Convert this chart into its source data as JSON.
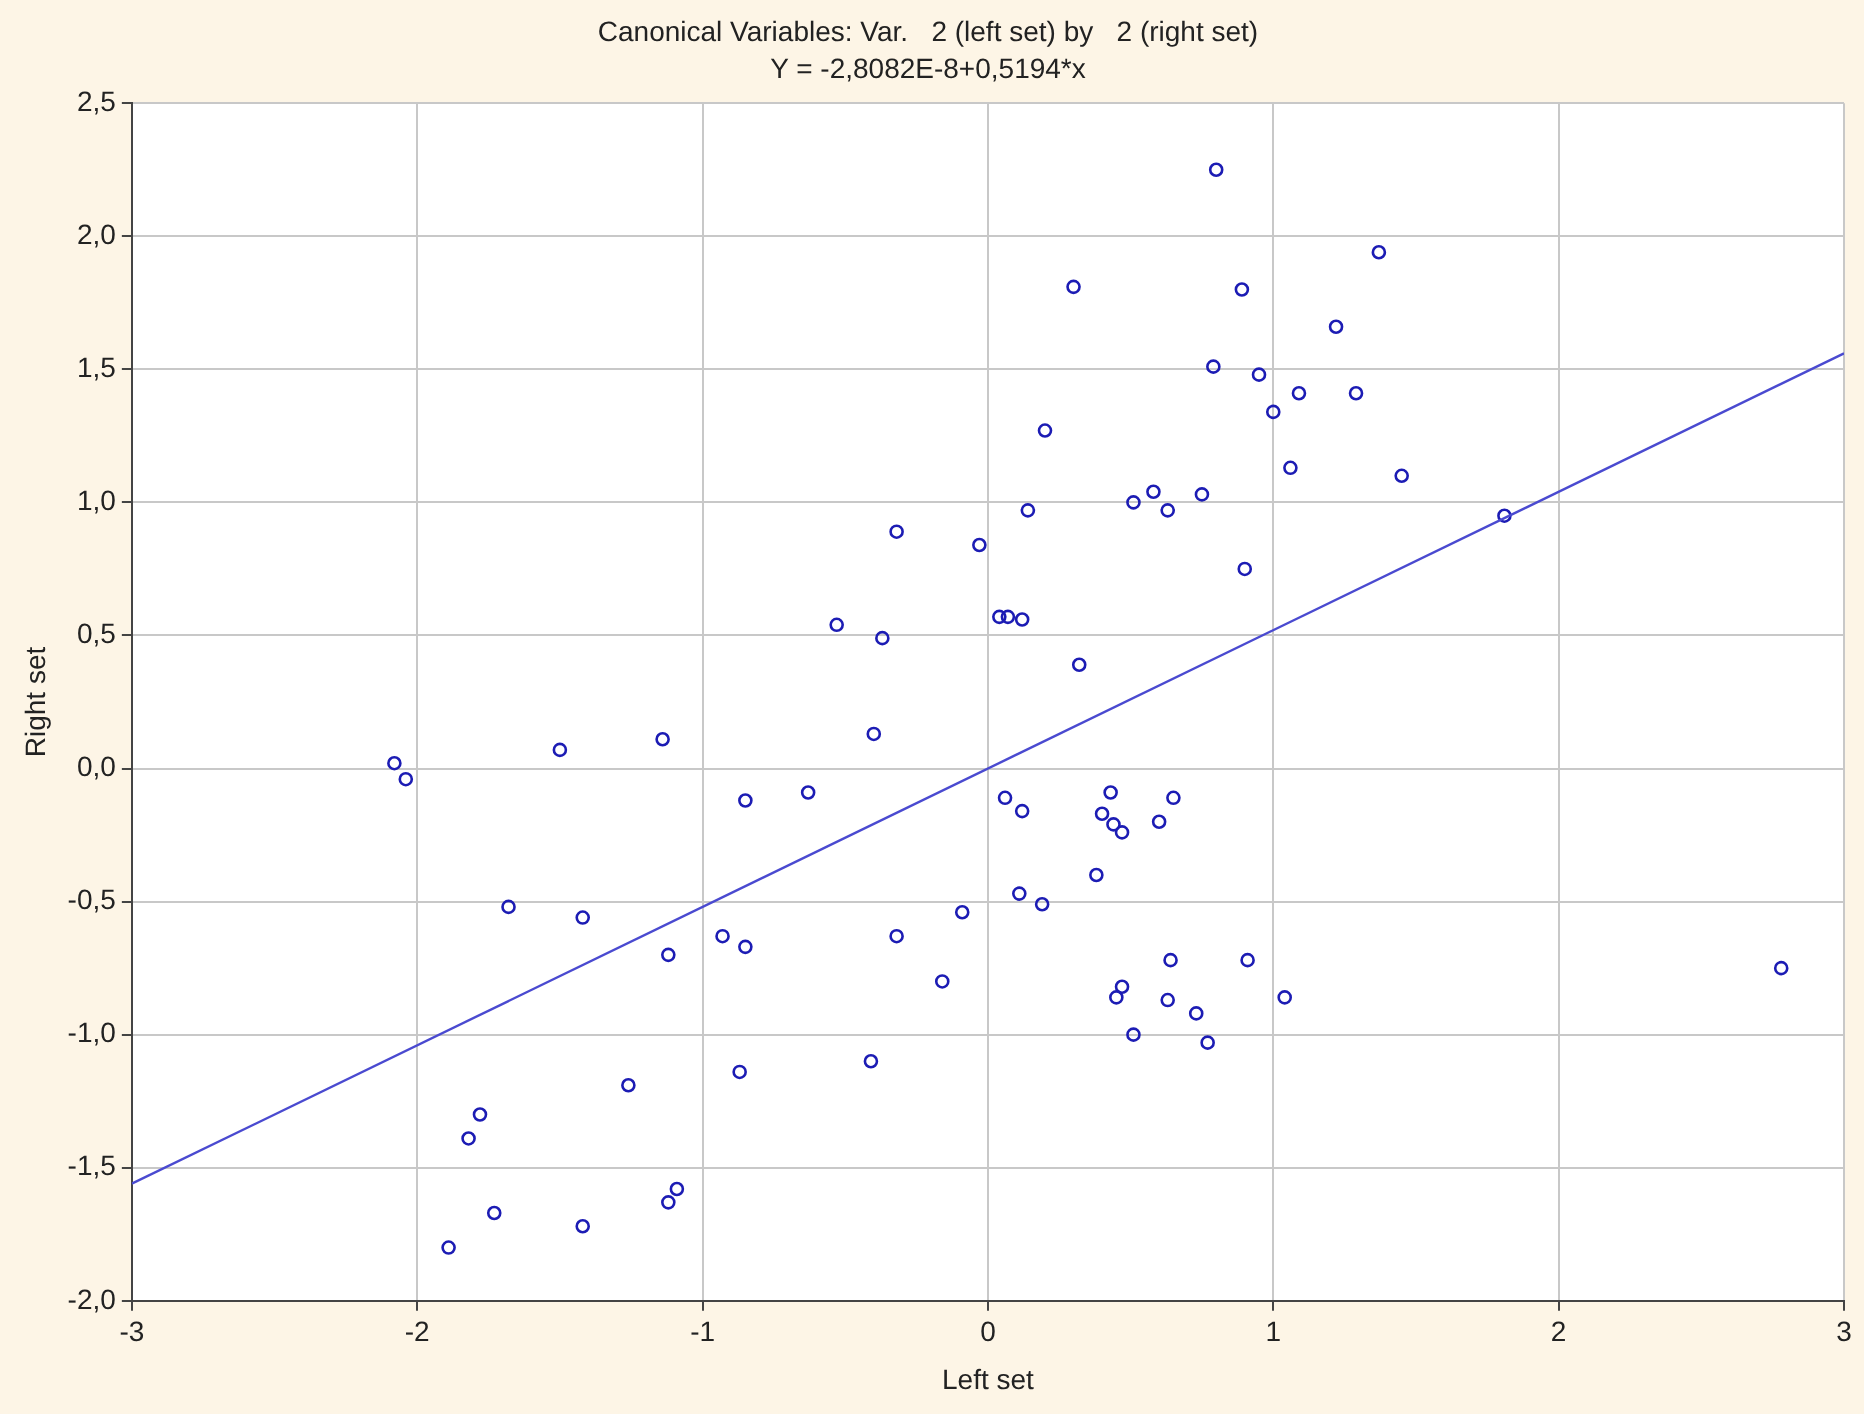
{
  "chart_data": {
    "type": "scatter",
    "title": "Canonical Variables: Var.   2 (left set) by   2 (right set)",
    "subtitle": "Y = -2,8082E-8+0,5194*x",
    "xlabel": "Left set",
    "ylabel": "Right set",
    "xlim": [
      -3,
      3
    ],
    "ylim": [
      -2,
      2.5
    ],
    "xticks": [
      -3,
      -2,
      -1,
      0,
      1,
      2,
      3
    ],
    "yticks": [
      {
        "value": -2,
        "label": "-2,0"
      },
      {
        "value": -1.5,
        "label": "-1,5"
      },
      {
        "value": -1,
        "label": "-1,0"
      },
      {
        "value": -0.5,
        "label": "-0,5"
      },
      {
        "value": 0,
        "label": "0,0"
      },
      {
        "value": 0.5,
        "label": "0,5"
      },
      {
        "value": 1,
        "label": "1,0"
      },
      {
        "value": 1.5,
        "label": "1,5"
      },
      {
        "value": 2,
        "label": "2,0"
      },
      {
        "value": 2.5,
        "label": "2,5"
      }
    ],
    "grid": true,
    "legend": false,
    "marker": "circle",
    "series": [
      {
        "type": "scatter",
        "color": "#1c1cb4",
        "x": [
          0.8,
          1.37,
          0.3,
          0.89,
          1.22,
          0.79,
          0.95,
          1.09,
          1.29,
          1.0,
          0.2,
          1.06,
          1.45,
          0.58,
          0.75,
          0.51,
          0.63,
          0.14,
          -0.32,
          -0.03,
          0.9,
          1.81,
          0.04,
          0.07,
          0.12,
          -0.53,
          -0.37,
          0.32,
          -2.08,
          -2.04,
          -1.5,
          -1.14,
          -0.4,
          -0.85,
          -0.63,
          0.06,
          0.12,
          0.43,
          0.4,
          0.44,
          0.47,
          0.6,
          0.65,
          0.38,
          -1.68,
          -1.42,
          0.19,
          0.11,
          -0.09,
          -0.32,
          -0.93,
          -0.85,
          -1.12,
          0.64,
          0.91,
          -0.16,
          0.47,
          0.45,
          0.63,
          1.04,
          0.73,
          2.78,
          0.51,
          0.77,
          -0.41,
          -0.87,
          -1.26,
          -1.78,
          -1.82,
          -1.73,
          -1.42,
          -1.09,
          -1.12,
          -1.89
        ],
        "values": [
          2.25,
          1.94,
          1.81,
          1.8,
          1.66,
          1.51,
          1.48,
          1.41,
          1.41,
          1.34,
          1.27,
          1.13,
          1.1,
          1.04,
          1.03,
          1.0,
          0.97,
          0.97,
          0.89,
          0.84,
          0.75,
          0.95,
          0.57,
          0.57,
          0.56,
          0.54,
          0.49,
          0.39,
          0.02,
          -0.04,
          0.07,
          0.11,
          0.13,
          -0.12,
          -0.09,
          -0.11,
          -0.16,
          -0.09,
          -0.17,
          -0.21,
          -0.24,
          -0.2,
          -0.11,
          -0.4,
          -0.52,
          -0.56,
          -0.51,
          -0.47,
          -0.54,
          -0.63,
          -0.63,
          -0.67,
          -0.7,
          -0.72,
          -0.72,
          -0.8,
          -0.82,
          -0.86,
          -0.87,
          -0.86,
          -0.92,
          -0.75,
          -1.0,
          -1.03,
          -1.1,
          -1.14,
          -1.19,
          -1.3,
          -1.39,
          -1.67,
          -1.72,
          -1.58,
          -1.63,
          -1.8
        ]
      },
      {
        "type": "line",
        "color": "#4a4ad0",
        "marker": "none",
        "x": [
          -3,
          3
        ],
        "values": [
          -1.56,
          1.56
        ]
      }
    ]
  }
}
